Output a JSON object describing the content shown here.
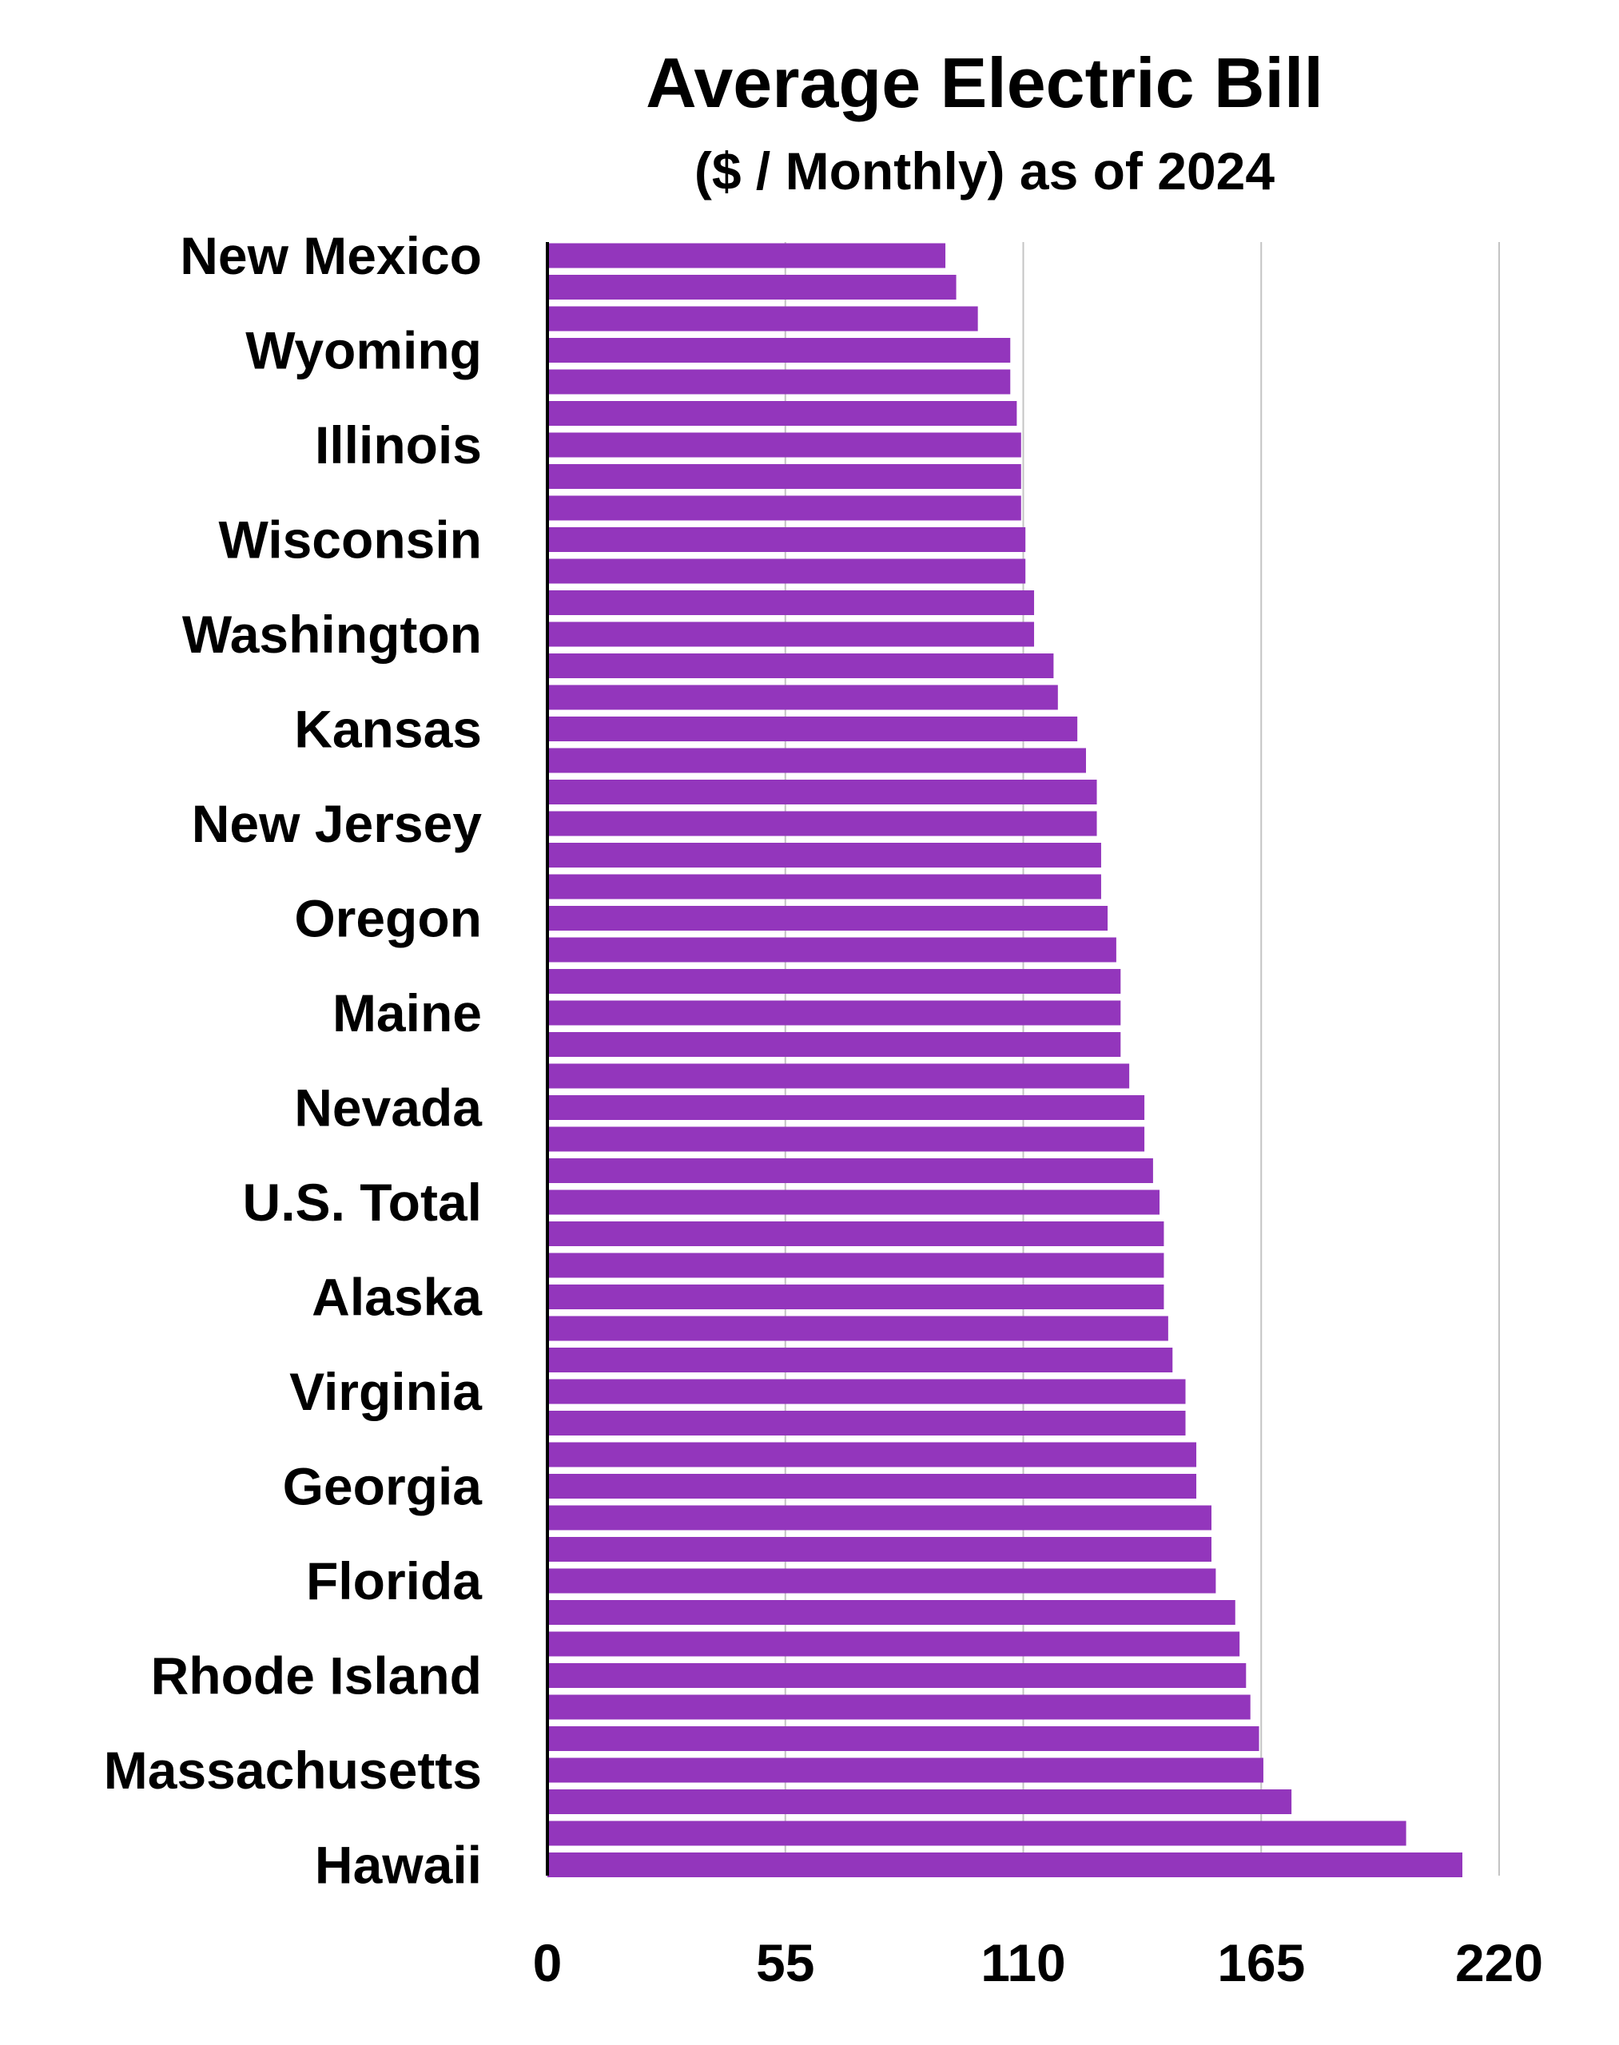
{
  "chart_data": {
    "type": "bar",
    "orientation": "horizontal",
    "title": "Average Electric Bill",
    "subtitle": "($ / Monthly) as of 2024",
    "xlabel": "",
    "ylabel": "",
    "xlim": [
      0,
      220
    ],
    "x_ticks": [
      "0",
      "55",
      "110",
      "165",
      "220"
    ],
    "grid": "vertical",
    "bar_color": "#9336BC",
    "category_labels_shown": [
      "New Mexico",
      "Wyoming",
      "Illinois",
      "Wisconsin",
      "Washington",
      "Kansas",
      "New Jersey",
      "Oregon",
      "Maine",
      "Nevada",
      "U.S. Total",
      "Alaska",
      "Virginia",
      "Georgia",
      "Florida",
      "Rhode Island",
      "Massachusetts",
      "Hawaii"
    ],
    "values": [
      92,
      94.5,
      99.5,
      107,
      107,
      108.5,
      109.5,
      109.5,
      109.5,
      110.5,
      110.5,
      112.5,
      112.5,
      117,
      118,
      122.5,
      124.5,
      127,
      127,
      128,
      128,
      129.5,
      131.5,
      132.5,
      132.5,
      132.5,
      134.5,
      138,
      138,
      140,
      141.5,
      142.5,
      142.5,
      142.5,
      143.5,
      144.5,
      147.5,
      147.5,
      150,
      150,
      153.5,
      153.5,
      154.5,
      159,
      160,
      161.5,
      162.5,
      164.5,
      165.5,
      172,
      198.5,
      211.5
    ]
  }
}
